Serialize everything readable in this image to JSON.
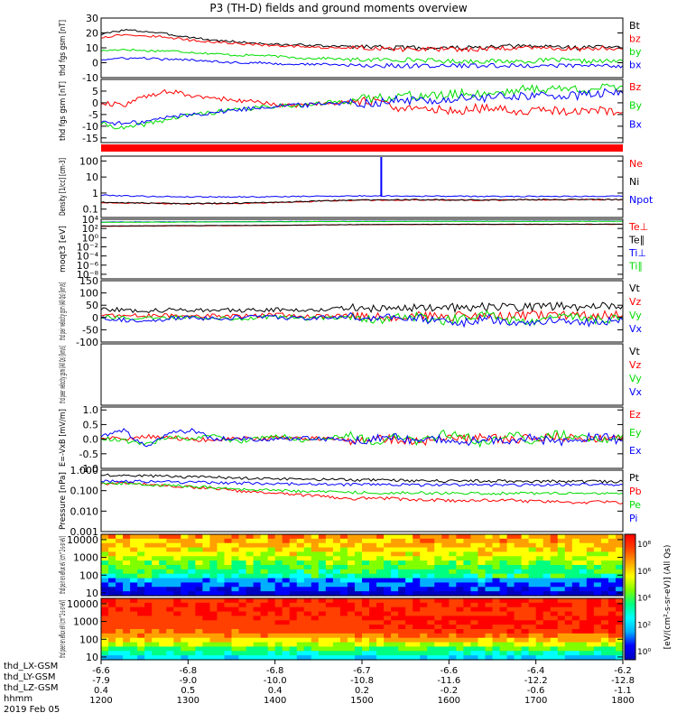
{
  "title": "P3 (TH-D) fields and ground moments overview",
  "chart_data": [
    {
      "type": "line",
      "ylabel": "thd fgs gsm [nT]",
      "ylim": [
        -10,
        30
      ],
      "yticks": [
        "30",
        "20",
        "10",
        "0",
        "-10"
      ],
      "series": [
        {
          "name": "Bt",
          "color": "#000000",
          "values": [
            19,
            22,
            21,
            19,
            17,
            15,
            14,
            13,
            12,
            12,
            11,
            11,
            11,
            10,
            10,
            10,
            10,
            10,
            11,
            11,
            11,
            10,
            11,
            10
          ]
        },
        {
          "name": "bz",
          "color": "#ff0000",
          "values": [
            17,
            19,
            18,
            17,
            15,
            14,
            13,
            12,
            11,
            11,
            10,
            10,
            10,
            9,
            9,
            9,
            9,
            9,
            10,
            10,
            10,
            9,
            10,
            9
          ]
        },
        {
          "name": "by",
          "color": "#00dd00",
          "values": [
            8,
            9,
            8,
            8,
            7,
            6,
            5,
            5,
            4,
            3,
            3,
            2,
            2,
            2,
            2,
            1,
            1,
            1,
            1,
            1,
            2,
            1,
            1,
            1
          ]
        },
        {
          "name": "bx",
          "color": "#0000ff",
          "values": [
            2,
            3,
            3,
            2,
            2,
            1,
            0,
            0,
            -1,
            -1,
            -1,
            -2,
            -2,
            -2,
            -2,
            -2,
            -2,
            -2,
            -2,
            -2,
            -2,
            -2,
            -2,
            -2
          ]
        }
      ]
    },
    {
      "type": "line",
      "ylabel": "thd fgs gsm [nT]",
      "ylim": [
        -17,
        10
      ],
      "yticks": [
        "5",
        "0",
        "-5",
        "-10",
        "-15"
      ],
      "series": [
        {
          "name": "Bz",
          "color": "#ff0000",
          "values": [
            0,
            -1,
            3,
            5,
            3,
            2,
            1,
            0,
            -1,
            -1,
            0,
            0,
            1,
            -2,
            -3,
            -3,
            -3,
            -2,
            -3,
            -4,
            -3,
            -4,
            -3,
            -4
          ]
        },
        {
          "name": "By",
          "color": "#00dd00",
          "values": [
            -9,
            -11,
            -9,
            -7,
            -5,
            -4,
            -3,
            -2,
            -1,
            -1,
            0,
            1,
            2,
            3,
            3,
            3,
            4,
            4,
            5,
            6,
            6,
            6,
            6,
            7
          ]
        },
        {
          "name": "Bx",
          "color": "#0000ff",
          "values": [
            -8,
            -9,
            -8,
            -6,
            -5,
            -4,
            -3,
            -2,
            -1,
            -1,
            0,
            0,
            0,
            1,
            1,
            1,
            2,
            2,
            3,
            3,
            3,
            3,
            4,
            4
          ]
        }
      ]
    },
    {
      "type": "line",
      "ylabel": "Density [1/cc] [cm-3]",
      "yscale": "log",
      "ylim": [
        0.03,
        200
      ],
      "yticks": [
        "100",
        "10",
        "1",
        "0.1"
      ],
      "series": [
        {
          "name": "Ne",
          "color": "#ff0000",
          "values": [
            0.26,
            0.24,
            0.23,
            0.22,
            0.21,
            0.22,
            0.23,
            0.24,
            0.26,
            0.28,
            0.33,
            0.35,
            0.36,
            0.37,
            0.38,
            0.37,
            0.36,
            0.36,
            0.37,
            0.38,
            0.38,
            0.39,
            0.39,
            0.39
          ]
        },
        {
          "name": "Ni",
          "color": "#000000",
          "values": [
            0.27,
            0.25,
            0.24,
            0.23,
            0.22,
            0.23,
            0.24,
            0.25,
            0.27,
            0.3,
            0.34,
            0.36,
            0.37,
            0.38,
            0.39,
            0.38,
            0.37,
            0.37,
            0.38,
            0.39,
            0.39,
            0.4,
            0.4,
            0.4
          ]
        },
        {
          "name": "Npot",
          "color": "#0000ff",
          "values": [
            0.75,
            0.68,
            0.63,
            0.6,
            0.58,
            0.58,
            0.58,
            0.58,
            0.6,
            0.62,
            0.65,
            0.66,
            0.67,
            0.66,
            0.65,
            0.64,
            0.63,
            0.62,
            0.62,
            0.63,
            0.63,
            0.63,
            0.63,
            0.63
          ]
        }
      ]
    },
    {
      "type": "line",
      "ylabel": "moqt3 [eV]",
      "yscale": "log",
      "ylim": [
        1e-09,
        10000
      ],
      "yticks": [
        "10⁴",
        "10²",
        "10⁰",
        "10⁻²",
        "10⁻⁴",
        "10⁻⁶",
        "10⁻⁸"
      ],
      "series": [
        {
          "name": "Te⊥",
          "color": "#ff0000",
          "values": [
            300,
            320,
            340,
            360,
            380,
            400,
            420,
            440,
            480,
            520,
            600,
            650,
            700,
            720,
            740,
            750,
            760,
            760,
            770,
            780,
            790,
            800,
            800,
            810
          ]
        },
        {
          "name": "Te∥",
          "color": "#000000",
          "values": [
            350,
            360,
            380,
            400,
            420,
            440,
            460,
            480,
            520,
            560,
            650,
            700,
            750,
            780,
            800,
            810,
            820,
            830,
            840,
            850,
            860,
            870,
            870,
            880
          ]
        },
        {
          "name": "Ti⊥",
          "color": "#0000ff",
          "values": [
            2500,
            2600,
            2700,
            2800,
            2900,
            3000,
            3100,
            3200,
            3300,
            3400,
            3500,
            3600,
            3700,
            3700,
            3800,
            3800,
            3800,
            3900,
            3900,
            3900,
            4000,
            4000,
            4000,
            4000
          ]
        },
        {
          "name": "Ti∥",
          "color": "#00dd00",
          "values": [
            2200,
            2300,
            2400,
            2500,
            2600,
            2700,
            2800,
            2900,
            3000,
            3100,
            3200,
            3300,
            3400,
            3400,
            3500,
            3500,
            3500,
            3600,
            3600,
            3600,
            3700,
            3700,
            3700,
            3700
          ]
        }
      ]
    },
    {
      "type": "line",
      "ylabel": "thd peir velocity gsm (All Qs) [km/s]",
      "ylim": [
        -100,
        150
      ],
      "yticks": [
        "150",
        "100",
        "50",
        "0",
        "-50",
        "-100"
      ],
      "series": [
        {
          "name": "Vt",
          "color": "#000000",
          "values": [
            35,
            30,
            28,
            30,
            32,
            30,
            28,
            30,
            33,
            30,
            35,
            38,
            36,
            40,
            42,
            38,
            40,
            42,
            40,
            45,
            48,
            44,
            46,
            48
          ]
        },
        {
          "name": "Vz",
          "color": "#ff0000",
          "values": [
            10,
            8,
            6,
            8,
            10,
            6,
            4,
            8,
            10,
            6,
            4,
            6,
            2,
            4,
            6,
            2,
            8,
            6,
            4,
            10,
            8,
            6,
            10,
            8
          ]
        },
        {
          "name": "Vy",
          "color": "#00dd00",
          "values": [
            5,
            0,
            -5,
            0,
            5,
            0,
            -5,
            0,
            5,
            -5,
            0,
            5,
            -10,
            0,
            5,
            -15,
            0,
            10,
            -10,
            -20,
            0,
            5,
            -10,
            0
          ]
        },
        {
          "name": "Vx",
          "color": "#0000ff",
          "values": [
            0,
            -10,
            -20,
            -5,
            0,
            -5,
            0,
            5,
            0,
            -5,
            0,
            5,
            -5,
            0,
            -5,
            -10,
            -20,
            -5,
            -15,
            -25,
            -10,
            -15,
            -20,
            -10
          ]
        }
      ]
    },
    {
      "type": "line",
      "ylabel": "thd peer velocity gsm (All Qs) [km/s]",
      "ylim": [
        0,
        1
      ],
      "yticks": [],
      "series": [
        {
          "name": "Vt",
          "color": "#000000",
          "values": []
        },
        {
          "name": "Vz",
          "color": "#ff0000",
          "values": []
        },
        {
          "name": "Vy",
          "color": "#00dd00",
          "values": []
        },
        {
          "name": "Vx",
          "color": "#0000ff",
          "values": []
        }
      ]
    },
    {
      "type": "line",
      "ylabel": "E=-VxB [mV/m]",
      "ylim": [
        -1,
        1.1
      ],
      "yticks": [
        "1.0",
        "0.5",
        "0.0",
        "-0.5",
        "-1.0"
      ],
      "series": [
        {
          "name": "Ez",
          "color": "#ff0000",
          "values": [
            0.05,
            0.0,
            0.1,
            0.05,
            0.0,
            -0.05,
            0.05,
            0.0,
            0.05,
            0.0,
            0.05,
            -0.05,
            0.05,
            0.0,
            -0.1,
            0.05,
            0.0,
            0.1,
            -0.05,
            0.05,
            0.1,
            0.0,
            0.05,
            0.1
          ]
        },
        {
          "name": "Ey",
          "color": "#00dd00",
          "values": [
            0.05,
            -0.05,
            -0.2,
            0.1,
            0.0,
            0.1,
            -0.1,
            0.05,
            0.1,
            -0.05,
            0.05,
            0.15,
            -0.1,
            0.1,
            -0.15,
            0.2,
            0.1,
            -0.2,
            0.25,
            -0.1,
            0.2,
            0.1,
            -0.05,
            0.15
          ]
        },
        {
          "name": "Ex",
          "color": "#0000ff",
          "values": [
            0.1,
            0.3,
            -0.3,
            0.2,
            0.3,
            0.0,
            0.05,
            -0.05,
            0.0,
            0.05,
            0.0,
            -0.05,
            0.0,
            0.05,
            -0.05,
            0.0,
            -0.1,
            0.05,
            -0.15,
            0.05,
            -0.1,
            0.0,
            0.1,
            -0.05
          ]
        }
      ]
    },
    {
      "type": "line",
      "ylabel": "Pressure [nPa]",
      "yscale": "log",
      "ylim": [
        0.001,
        1.0
      ],
      "yticks": [
        "1.000",
        "0.100",
        "0.010",
        "0.001"
      ],
      "series": [
        {
          "name": "Pt",
          "color": "#000000",
          "values": [
            0.6,
            0.58,
            0.55,
            0.5,
            0.48,
            0.45,
            0.42,
            0.4,
            0.38,
            0.36,
            0.35,
            0.34,
            0.33,
            0.32,
            0.31,
            0.3,
            0.3,
            0.3,
            0.29,
            0.29,
            0.29,
            0.28,
            0.28,
            0.28
          ]
        },
        {
          "name": "Pb",
          "color": "#ff0000",
          "values": [
            0.22,
            0.24,
            0.2,
            0.18,
            0.15,
            0.12,
            0.1,
            0.08,
            0.07,
            0.06,
            0.05,
            0.04,
            0.045,
            0.04,
            0.035,
            0.035,
            0.03,
            0.035,
            0.035,
            0.03,
            0.03,
            0.025,
            0.03,
            0.025
          ]
        },
        {
          "name": "Pe",
          "color": "#00dd00",
          "values": [
            0.25,
            0.23,
            0.2,
            0.18,
            0.16,
            0.14,
            0.12,
            0.11,
            0.1,
            0.09,
            0.09,
            0.085,
            0.08,
            0.08,
            0.08,
            0.075,
            0.075,
            0.075,
            0.075,
            0.075,
            0.075,
            0.075,
            0.075,
            0.075
          ]
        },
        {
          "name": "Pi",
          "color": "#0000ff",
          "values": [
            0.3,
            0.3,
            0.28,
            0.27,
            0.26,
            0.25,
            0.24,
            0.23,
            0.22,
            0.21,
            0.2,
            0.2,
            0.2,
            0.2,
            0.19,
            0.19,
            0.19,
            0.19,
            0.19,
            0.19,
            0.2,
            0.2,
            0.2,
            0.2
          ]
        }
      ]
    },
    {
      "type": "heatmap",
      "ylabel": "thd peir en eflux eV (cm^2-s-sr-eV)",
      "yscale": "log",
      "ylim": [
        7,
        20000
      ],
      "yticks": [
        "10000",
        "1000",
        "100",
        "10"
      ]
    },
    {
      "type": "heatmap",
      "ylabel": "thd peer en eflux eV (cm^2-s-sr-eV)",
      "yscale": "log",
      "ylim": [
        7,
        20000
      ],
      "yticks": [
        "10000",
        "1000",
        "100",
        "10"
      ]
    }
  ],
  "colorbar": {
    "label": "[eV/(cm²-s-sr-eV)] (All Qs)",
    "ticks": [
      "10⁸",
      "10⁶",
      "10⁴",
      "10²",
      "10⁰"
    ],
    "colors": [
      "#0000c0",
      "#0000ff",
      "#00b0ff",
      "#00ffff",
      "#00ff80",
      "#80ff00",
      "#ffff00",
      "#ffa000",
      "#ff4000",
      "#ff0000"
    ]
  },
  "xaxis": {
    "row_labels": [
      "thd_LX-GSM",
      "thd_LY-GSM",
      "thd_LZ-GSM",
      "hhmm",
      "2019 Feb 05"
    ],
    "LX": [
      "-6.6",
      "-6.8",
      "-6.8",
      "-6.7",
      "-6.6",
      "-6.4",
      "-6.2"
    ],
    "LY": [
      "-7.9",
      "-9.0",
      "-10.0",
      "-10.8",
      "-11.6",
      "-12.2",
      "-12.8"
    ],
    "LZ": [
      "0.4",
      "0.5",
      "0.4",
      "0.2",
      "-0.2",
      "-0.6",
      "-1.1"
    ],
    "hhmm": [
      "1200",
      "1300",
      "1400",
      "1500",
      "1600",
      "1700",
      "1800"
    ]
  }
}
